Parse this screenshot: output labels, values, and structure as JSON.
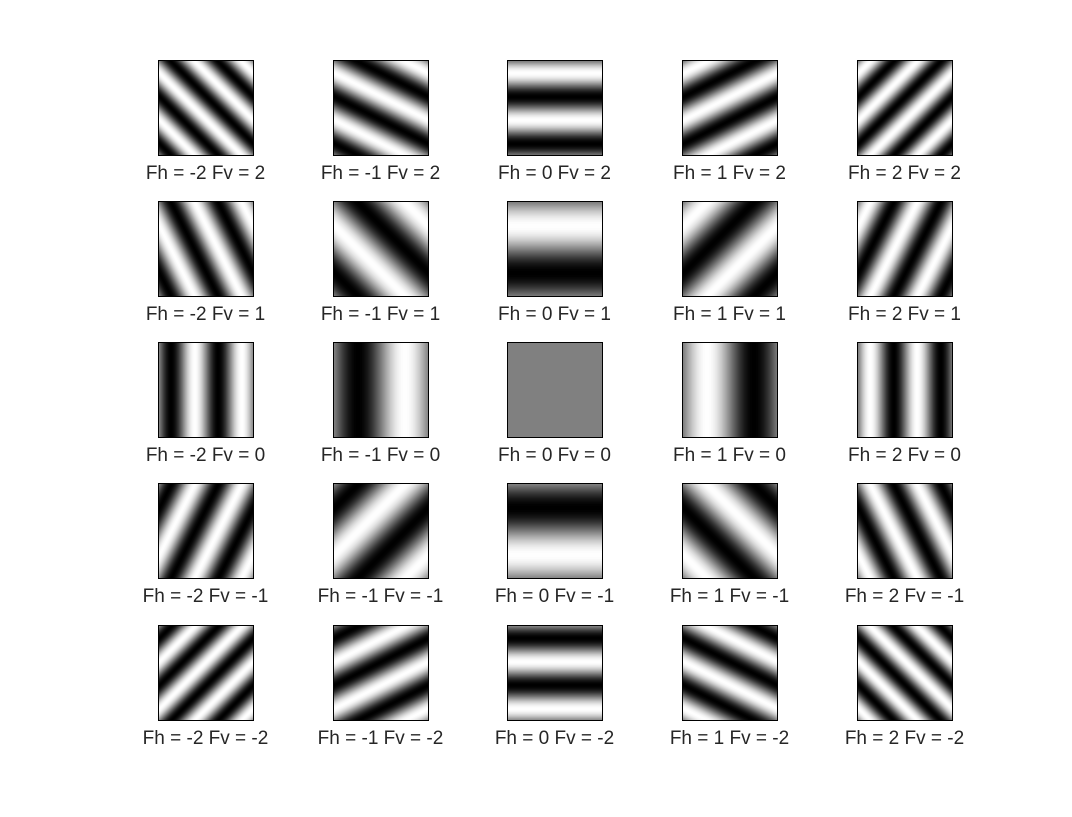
{
  "figure": {
    "rows": [
      [
        {
          "fh": -2,
          "fv": 2,
          "label": "Fh = -2 Fv = 2"
        },
        {
          "fh": -1,
          "fv": 2,
          "label": "Fh = -1 Fv = 2"
        },
        {
          "fh": 0,
          "fv": 2,
          "label": "Fh = 0 Fv = 2"
        },
        {
          "fh": 1,
          "fv": 2,
          "label": "Fh = 1 Fv = 2"
        },
        {
          "fh": 2,
          "fv": 2,
          "label": "Fh = 2 Fv = 2"
        }
      ],
      [
        {
          "fh": -2,
          "fv": 1,
          "label": "Fh = -2 Fv = 1"
        },
        {
          "fh": -1,
          "fv": 1,
          "label": "Fh = -1 Fv = 1"
        },
        {
          "fh": 0,
          "fv": 1,
          "label": "Fh = 0 Fv = 1"
        },
        {
          "fh": 1,
          "fv": 1,
          "label": "Fh = 1 Fv = 1"
        },
        {
          "fh": 2,
          "fv": 1,
          "label": "Fh = 2 Fv = 1"
        }
      ],
      [
        {
          "fh": -2,
          "fv": 0,
          "label": "Fh = -2 Fv = 0"
        },
        {
          "fh": -1,
          "fv": 0,
          "label": "Fh = -1 Fv = 0"
        },
        {
          "fh": 0,
          "fv": 0,
          "label": "Fh = 0 Fv = 0"
        },
        {
          "fh": 1,
          "fv": 0,
          "label": "Fh = 1 Fv = 0"
        },
        {
          "fh": 2,
          "fv": 0,
          "label": "Fh = 2 Fv = 0"
        }
      ],
      [
        {
          "fh": -2,
          "fv": -1,
          "label": "Fh = -2 Fv = -1"
        },
        {
          "fh": -1,
          "fv": -1,
          "label": "Fh = -1 Fv = -1"
        },
        {
          "fh": 0,
          "fv": -1,
          "label": "Fh = 0 Fv = -1"
        },
        {
          "fh": 1,
          "fv": -1,
          "label": "Fh = 1 Fv = -1"
        },
        {
          "fh": 2,
          "fv": -1,
          "label": "Fh = 2 Fv = -1"
        }
      ],
      [
        {
          "fh": -2,
          "fv": -2,
          "label": "Fh = -2 Fv = -2"
        },
        {
          "fh": -1,
          "fv": -2,
          "label": "Fh = -1 Fv = -2"
        },
        {
          "fh": 0,
          "fv": -2,
          "label": "Fh = 0 Fv = -2"
        },
        {
          "fh": 1,
          "fv": -2,
          "label": "Fh = 1 Fv = -2"
        },
        {
          "fh": 2,
          "fv": -2,
          "label": "Fh = 2 Fv = -2"
        }
      ]
    ]
  }
}
